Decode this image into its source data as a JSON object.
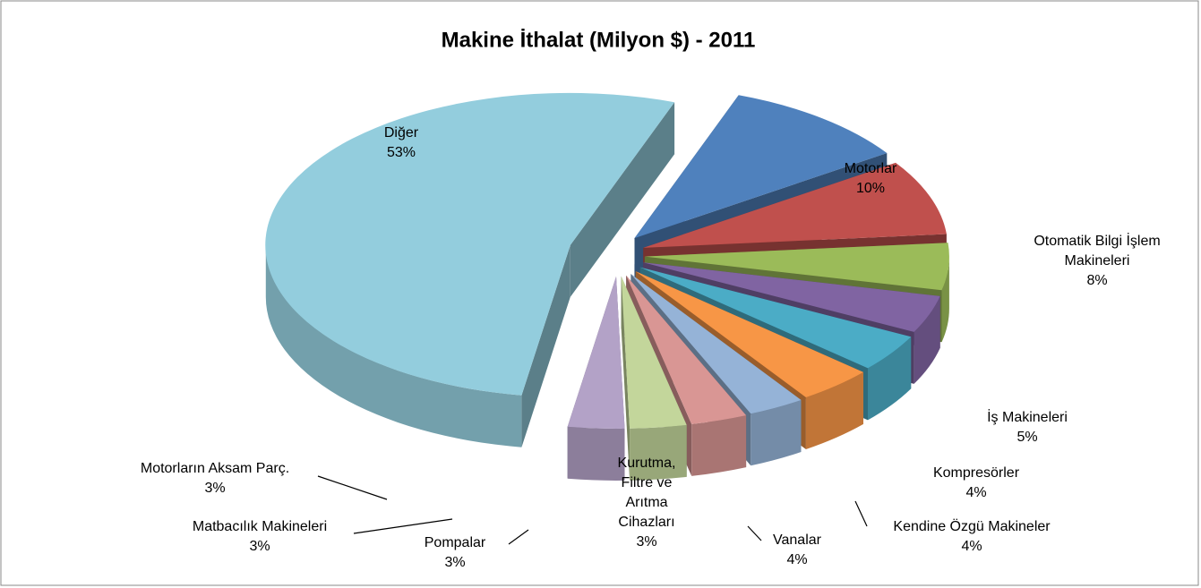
{
  "chart_data": {
    "type": "pie",
    "title": "Makine İthalat (Milyon $) - 2011",
    "categories": [
      "Motorlar",
      "Otomatik Bilgi İşlem Makineleri",
      "İş Makineleri",
      "Kompresörler",
      "Kendine Özgü Makineler",
      "Vanalar",
      "Kurutma, Filtre ve Arıtma Cihazları",
      "Pompalar",
      "Matbacılık Makineleri",
      "Motorların Aksam Parç.",
      "Diğer"
    ],
    "values": [
      10,
      8,
      5,
      4,
      4,
      4,
      3,
      3,
      3,
      3,
      53
    ],
    "value_labels": [
      "10%",
      "8%",
      "5%",
      "4%",
      "4%",
      "4%",
      "3%",
      "3%",
      "3%",
      "3%",
      "53%"
    ],
    "colors": [
      "#4f81bd",
      "#c0504d",
      "#9bbb59",
      "#8064a2",
      "#4bacc6",
      "#f79646",
      "#95b3d7",
      "#d99694",
      "#c3d69b",
      "#b3a2c7",
      "#93cddd"
    ]
  }
}
